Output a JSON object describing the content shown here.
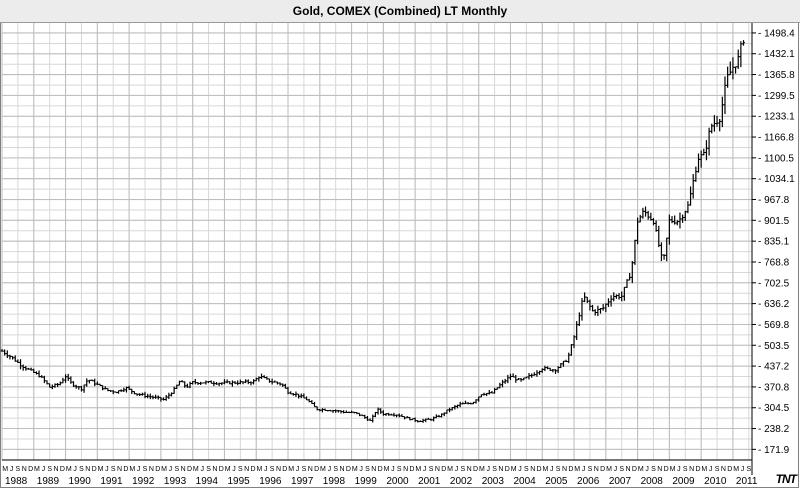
{
  "title": "Gold, COMEX (Combined) LT Monthly",
  "logo_text": "TNT",
  "chart_data": {
    "type": "bar",
    "style": "ohlc",
    "title": "Gold, COMEX (Combined) LT Monthly",
    "xlabel": "",
    "ylabel": "",
    "years": [
      "1988",
      "1989",
      "1990",
      "1991",
      "1992",
      "1993",
      "1994",
      "1995",
      "1996",
      "1997",
      "1998",
      "1999",
      "2000",
      "2001",
      "2002",
      "2003",
      "2004",
      "2005",
      "2006",
      "2007",
      "2008",
      "2009",
      "2010",
      "2011"
    ],
    "month_letters": "MJSND",
    "y_ticks": [
      171.9,
      238.2,
      304.5,
      370.8,
      437.2,
      503.5,
      569.8,
      636.2,
      702.5,
      768.8,
      835.1,
      901.5,
      967.8,
      1034.1,
      1100.5,
      1166.8,
      1233.1,
      1299.5,
      1365.8,
      1432.1,
      1498.4
    ],
    "ylim": [
      138,
      1530
    ],
    "x_range": [
      1988.0,
      2011.6
    ],
    "grid": true,
    "legend": "none",
    "close_path": [
      [
        1988.0,
        485
      ],
      [
        1988.3,
        465
      ],
      [
        1988.6,
        440
      ],
      [
        1988.9,
        422
      ],
      [
        1989.2,
        405
      ],
      [
        1989.5,
        370
      ],
      [
        1989.8,
        380
      ],
      [
        1990.0,
        405
      ],
      [
        1990.2,
        380
      ],
      [
        1990.5,
        365
      ],
      [
        1990.7,
        395
      ],
      [
        1991.0,
        378
      ],
      [
        1991.3,
        360
      ],
      [
        1991.6,
        355
      ],
      [
        1991.9,
        368
      ],
      [
        1992.2,
        350
      ],
      [
        1992.5,
        343
      ],
      [
        1992.8,
        337
      ],
      [
        1993.1,
        330
      ],
      [
        1993.4,
        360
      ],
      [
        1993.6,
        390
      ],
      [
        1993.8,
        370
      ],
      [
        1994.0,
        385
      ],
      [
        1994.5,
        385
      ],
      [
        1994.9,
        383
      ],
      [
        1995.5,
        385
      ],
      [
        1995.9,
        387
      ],
      [
        1996.1,
        405
      ],
      [
        1996.4,
        390
      ],
      [
        1996.8,
        380
      ],
      [
        1997.0,
        355
      ],
      [
        1997.3,
        345
      ],
      [
        1997.6,
        330
      ],
      [
        1997.9,
        300
      ],
      [
        1998.2,
        298
      ],
      [
        1998.5,
        295
      ],
      [
        1998.8,
        290
      ],
      [
        1999.1,
        288
      ],
      [
        1999.3,
        280
      ],
      [
        1999.6,
        262
      ],
      [
        1999.8,
        300
      ],
      [
        2000.0,
        285
      ],
      [
        2000.4,
        283
      ],
      [
        2000.8,
        270
      ],
      [
        2001.1,
        262
      ],
      [
        2001.5,
        268
      ],
      [
        2001.8,
        280
      ],
      [
        2002.0,
        295
      ],
      [
        2002.4,
        315
      ],
      [
        2002.8,
        320
      ],
      [
        2003.1,
        350
      ],
      [
        2003.4,
        350
      ],
      [
        2003.7,
        380
      ],
      [
        2004.0,
        405
      ],
      [
        2004.3,
        390
      ],
      [
        2004.7,
        410
      ],
      [
        2005.0,
        430
      ],
      [
        2005.4,
        425
      ],
      [
        2005.8,
        460
      ],
      [
        2006.0,
        530
      ],
      [
        2006.3,
        660
      ],
      [
        2006.6,
        610
      ],
      [
        2006.9,
        620
      ],
      [
        2007.2,
        660
      ],
      [
        2007.5,
        660
      ],
      [
        2007.8,
        740
      ],
      [
        2008.0,
        900
      ],
      [
        2008.2,
        930
      ],
      [
        2008.5,
        900
      ],
      [
        2008.8,
        760
      ],
      [
        2009.0,
        900
      ],
      [
        2009.3,
        900
      ],
      [
        2009.6,
        950
      ],
      [
        2009.9,
        1100
      ],
      [
        2010.1,
        1110
      ],
      [
        2010.3,
        1200
      ],
      [
        2010.6,
        1230
      ],
      [
        2010.8,
        1350
      ],
      [
        2011.0,
        1390
      ],
      [
        2011.2,
        1420
      ],
      [
        2011.3,
        1480
      ]
    ]
  }
}
